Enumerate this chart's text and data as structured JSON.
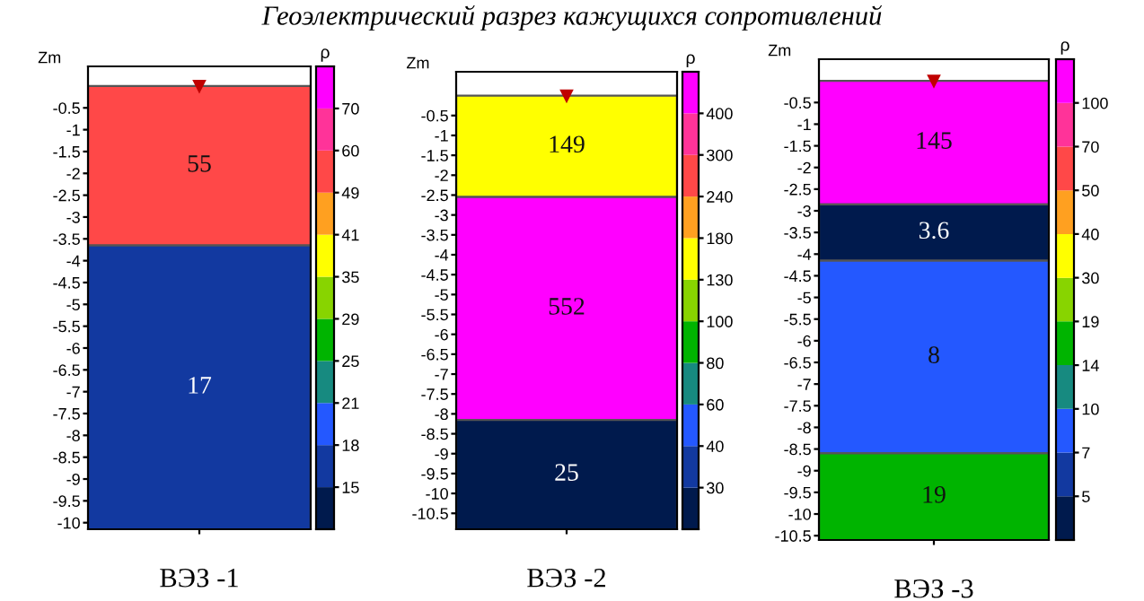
{
  "chart_data": [
    {
      "type": "bar",
      "title": "Геоэлектрический разрез кажущихся сопротивлений",
      "xlabel": "ВЭЗ -1",
      "ylabel": "Zm",
      "stacked": true,
      "categories": [
        null
      ],
      "series": [
        {
          "color": "#ff4848",
          "values": [
            -3.65
          ]
        },
        {
          "color": "#1239a0",
          "values": [
            -6.5
          ]
        }
      ],
      "annotations": [
        "55",
        "17"
      ],
      "ylim": [
        -10.15,
        0.45
      ],
      "yticks": [
        -0.5,
        -1,
        -1.5,
        -2,
        -2.5,
        -3,
        -3.5,
        -4,
        -4.5,
        -5,
        -5.5,
        -6,
        -6.5,
        -7,
        -7.5,
        -8,
        -8.5,
        -9,
        -9.5,
        -10
      ],
      "grid": false
    },
    {
      "type": "other",
      "ylabel": "ρ",
      "categories": [
        "15",
        "18",
        "21",
        "25",
        "29",
        "35",
        "41",
        "49",
        "60",
        "70"
      ],
      "colors": [
        "#001a4d",
        "#1239a0",
        "#2458ff",
        "#178a80",
        "#00b400",
        "#88d400",
        "#ffff00",
        "#ffa020",
        "#ff4848",
        "#ff3399",
        "#ff00ff"
      ]
    },
    {
      "type": "bar",
      "xlabel": "ВЭЗ -2",
      "ylabel": "Zm",
      "stacked": true,
      "categories": [
        null
      ],
      "series": [
        {
          "color": "#ffff00",
          "values": [
            -2.55
          ]
        },
        {
          "color": "#ff00ff",
          "values": [
            -5.6
          ]
        },
        {
          "color": "#001a4d",
          "values": [
            -2.75
          ]
        }
      ],
      "annotations": [
        "149",
        "552",
        "25"
      ],
      "ylim": [
        -10.9,
        0.6
      ],
      "yticks": [
        -0.5,
        -1,
        -1.5,
        -2,
        -2.5,
        -3,
        -3.5,
        -4,
        -4.5,
        -5,
        -5.5,
        -6,
        -6.5,
        -7,
        -7.5,
        -8,
        -8.5,
        -9,
        -9.5,
        -10,
        -10.5
      ],
      "grid": false
    },
    {
      "type": "other",
      "ylabel": "ρ",
      "categories": [
        "30",
        "40",
        "60",
        "80",
        "100",
        "130",
        "180",
        "240",
        "300",
        "400"
      ],
      "colors": [
        "#001a4d",
        "#1239a0",
        "#2458ff",
        "#178a80",
        "#00b400",
        "#88d400",
        "#ffff00",
        "#ffa020",
        "#ff4848",
        "#ff3399",
        "#ff00ff"
      ]
    },
    {
      "type": "bar",
      "xlabel": "ВЭЗ -3",
      "ylabel": "Zm",
      "stacked": true,
      "categories": [
        null
      ],
      "series": [
        {
          "color": "#ff00ff",
          "values": [
            -2.85
          ]
        },
        {
          "color": "#001a4d",
          "values": [
            -1.3
          ]
        },
        {
          "color": "#2458ff",
          "values": [
            -4.45
          ]
        },
        {
          "color": "#00b400",
          "values": [
            -2.0
          ]
        }
      ],
      "annotations": [
        "145",
        "3.6",
        "8",
        "19"
      ],
      "ylim": [
        -10.6,
        0.5
      ],
      "yticks": [
        -0.5,
        -1,
        -1.5,
        -2,
        -2.5,
        -3,
        -3.5,
        -4,
        -4.5,
        -5,
        -5.5,
        -6,
        -6.5,
        -7,
        -7.5,
        -8,
        -8.5,
        -9,
        -9.5,
        -10,
        -10.5
      ],
      "grid": false
    },
    {
      "type": "other",
      "ylabel": "ρ",
      "categories": [
        "5",
        "7",
        "10",
        "14",
        "19",
        "30",
        "40",
        "50",
        "70",
        "100"
      ],
      "colors": [
        "#001a4d",
        "#1239a0",
        "#2458ff",
        "#178a80",
        "#00b400",
        "#88d400",
        "#ffff00",
        "#ffa020",
        "#ff4848",
        "#ff3399",
        "#ff00ff"
      ]
    }
  ]
}
